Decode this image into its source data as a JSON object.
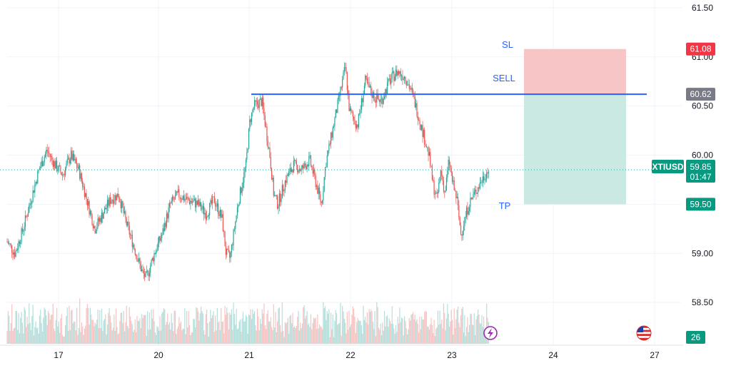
{
  "chart_data": {
    "type": "candlestick",
    "symbol": "XTIUSD",
    "last_price": "59.85",
    "countdown": "01:47",
    "volume_value": "26",
    "ylim": [
      58.0,
      61.55
    ],
    "y_ticks": [
      "61.50",
      "61.00",
      "60.50",
      "60.00",
      "59.50",
      "59.00",
      "58.50"
    ],
    "y_tick_values": [
      61.5,
      61.0,
      60.5,
      60.0,
      59.5,
      59.0,
      58.5
    ],
    "x_ticks": [
      "17",
      "20",
      "21",
      "22",
      "23",
      "24",
      "27"
    ],
    "grid": true,
    "price_path": [
      {
        "t": 0.0,
        "p": 59.12
      },
      {
        "t": 0.1,
        "p": 59.0
      },
      {
        "t": 0.2,
        "p": 59.25
      },
      {
        "t": 0.3,
        "p": 59.55
      },
      {
        "t": 0.4,
        "p": 59.85
      },
      {
        "t": 0.5,
        "p": 60.05
      },
      {
        "t": 0.6,
        "p": 59.9
      },
      {
        "t": 0.7,
        "p": 59.8
      },
      {
        "t": 0.8,
        "p": 60.0
      },
      {
        "t": 0.9,
        "p": 59.85
      },
      {
        "t": 1.0,
        "p": 59.55
      },
      {
        "t": 1.1,
        "p": 59.25
      },
      {
        "t": 1.2,
        "p": 59.4
      },
      {
        "t": 1.3,
        "p": 59.55
      },
      {
        "t": 1.4,
        "p": 59.6
      },
      {
        "t": 1.5,
        "p": 59.3
      },
      {
        "t": 1.6,
        "p": 59.05
      },
      {
        "t": 1.7,
        "p": 58.8
      },
      {
        "t": 1.75,
        "p": 58.75
      },
      {
        "t": 1.85,
        "p": 59.0
      },
      {
        "t": 1.95,
        "p": 59.2
      },
      {
        "t": 2.05,
        "p": 59.5
      },
      {
        "t": 2.15,
        "p": 59.6
      },
      {
        "t": 2.25,
        "p": 59.55
      },
      {
        "t": 2.4,
        "p": 59.5
      },
      {
        "t": 2.5,
        "p": 59.4
      },
      {
        "t": 2.6,
        "p": 59.55
      },
      {
        "t": 2.7,
        "p": 59.35
      },
      {
        "t": 2.75,
        "p": 59.0
      },
      {
        "t": 2.8,
        "p": 58.95
      },
      {
        "t": 2.9,
        "p": 59.5
      },
      {
        "t": 3.0,
        "p": 59.9
      },
      {
        "t": 3.05,
        "p": 60.35
      },
      {
        "t": 3.1,
        "p": 60.5
      },
      {
        "t": 3.2,
        "p": 60.55
      },
      {
        "t": 3.3,
        "p": 60.0
      },
      {
        "t": 3.35,
        "p": 59.6
      },
      {
        "t": 3.4,
        "p": 59.5
      },
      {
        "t": 3.5,
        "p": 59.75
      },
      {
        "t": 3.6,
        "p": 59.9
      },
      {
        "t": 3.7,
        "p": 59.85
      },
      {
        "t": 3.8,
        "p": 59.95
      },
      {
        "t": 3.9,
        "p": 59.65
      },
      {
        "t": 3.95,
        "p": 59.5
      },
      {
        "t": 4.0,
        "p": 59.9
      },
      {
        "t": 4.1,
        "p": 60.3
      },
      {
        "t": 4.2,
        "p": 60.7
      },
      {
        "t": 4.25,
        "p": 60.9
      },
      {
        "t": 4.3,
        "p": 60.45
      },
      {
        "t": 4.4,
        "p": 60.3
      },
      {
        "t": 4.5,
        "p": 60.75
      },
      {
        "t": 4.6,
        "p": 60.6
      },
      {
        "t": 4.7,
        "p": 60.55
      },
      {
        "t": 4.8,
        "p": 60.75
      },
      {
        "t": 4.9,
        "p": 60.85
      },
      {
        "t": 5.0,
        "p": 60.8
      },
      {
        "t": 5.1,
        "p": 60.6
      },
      {
        "t": 5.2,
        "p": 60.3
      },
      {
        "t": 5.3,
        "p": 60.0
      },
      {
        "t": 5.35,
        "p": 59.7
      },
      {
        "t": 5.4,
        "p": 59.55
      },
      {
        "t": 5.45,
        "p": 59.85
      },
      {
        "t": 5.5,
        "p": 59.6
      },
      {
        "t": 5.55,
        "p": 59.95
      },
      {
        "t": 5.6,
        "p": 59.7
      },
      {
        "t": 5.65,
        "p": 59.55
      },
      {
        "t": 5.7,
        "p": 59.2
      },
      {
        "t": 5.75,
        "p": 59.35
      },
      {
        "t": 5.8,
        "p": 59.5
      },
      {
        "t": 5.9,
        "p": 59.65
      },
      {
        "t": 6.0,
        "p": 59.8
      },
      {
        "t": 6.05,
        "p": 59.85
      }
    ],
    "trade": {
      "side_label": "SELL",
      "entry": 60.62,
      "entry_label": "60.62",
      "stop_label": "SL",
      "stop": 61.08,
      "stop_price_label": "61.08",
      "target_label": "TP",
      "target": 59.5,
      "target_price_label": "59.50"
    }
  },
  "colors": {
    "up": "#26a69a",
    "down": "#ef5350",
    "line_blue": "#2962ff",
    "sl_zone": "#f7c5c5",
    "tp_zone": "#c9e9e2",
    "sl_tag": "#f23645",
    "entry_tag": "#787b86",
    "tp_tag": "#089981",
    "price_tag": "#089981",
    "grid": "#f0f3fa",
    "label_blue": "#2962ff"
  },
  "icons": {
    "lightning": "lightning-icon",
    "flag": "us-flag-icon"
  }
}
